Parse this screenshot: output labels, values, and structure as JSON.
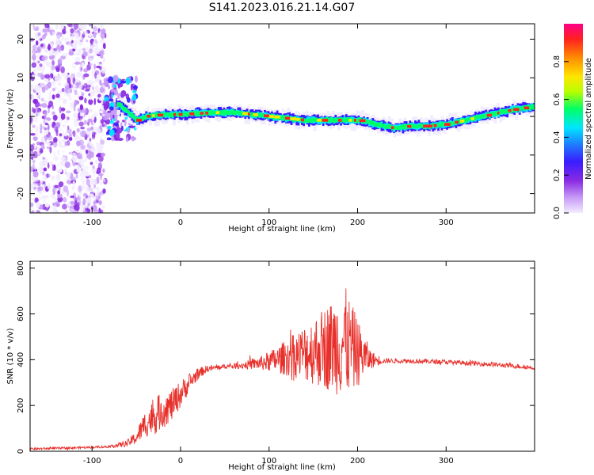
{
  "title": "S141.2023.016.21.14.G07",
  "colors": {
    "snr_line": "#e8302b",
    "axis": "#000000",
    "background": "#ffffff",
    "colormap": [
      "#f2ecff",
      "#c89cf7",
      "#8a2be2",
      "#3a1cff",
      "#1f7bff",
      "#00e5ff",
      "#00ff66",
      "#b6ff00",
      "#ffe600",
      "#ff8c00",
      "#ff2020",
      "#ff0088"
    ]
  },
  "chart_data": [
    {
      "type": "heatmap",
      "xlabel": "Height of straight line (km)",
      "ylabel": "Frequency (Hz)",
      "xlim": [
        -170,
        400
      ],
      "ylim": [
        -25,
        24
      ],
      "x_ticks": [
        -100,
        0,
        100,
        200,
        300
      ],
      "y_ticks": [
        -20,
        -10,
        0,
        10,
        20
      ],
      "ridge": {
        "x": [
          -70,
          -60,
          -50,
          -40,
          -20,
          0,
          20,
          40,
          60,
          80,
          100,
          120,
          140,
          160,
          180,
          200,
          220,
          240,
          260,
          280,
          300,
          320,
          340,
          360,
          380,
          400
        ],
        "freq": [
          3,
          1,
          -1,
          0,
          0.5,
          0.5,
          0.8,
          1,
          1,
          0.5,
          0,
          -0.5,
          -1,
          -1,
          -1,
          -1,
          -2,
          -3,
          -2.5,
          -2.5,
          -2,
          -1,
          0,
          1,
          2,
          2.5
        ]
      },
      "colorbar": {
        "label": "Normalized spectral amplitude",
        "ticks": [
          "0.0",
          "0.2",
          "0.4",
          "0.6",
          "0.8"
        ],
        "range": [
          0,
          1
        ]
      }
    },
    {
      "type": "line",
      "xlabel": "Height of straight line (km)",
      "ylabel": "SNR (10 * v/v)",
      "xlim": [
        -170,
        400
      ],
      "ylim": [
        0,
        830
      ],
      "x_ticks": [
        -100,
        0,
        100,
        200,
        300
      ],
      "y_ticks": [
        0,
        200,
        400,
        600,
        800
      ],
      "series": [
        {
          "x": [
            -170,
            -120,
            -80,
            -60,
            -50,
            -40,
            -30,
            -20,
            -10,
            0,
            10,
            20,
            30,
            50,
            70,
            90,
            110,
            130,
            150,
            170,
            185,
            200,
            215,
            230,
            260,
            300,
            350,
            400
          ],
          "y": [
            10,
            15,
            20,
            35,
            60,
            120,
            150,
            180,
            200,
            250,
            300,
            340,
            360,
            370,
            375,
            385,
            400,
            420,
            440,
            460,
            480,
            430,
            400,
            395,
            395,
            390,
            380,
            365
          ],
          "spread": [
            5,
            5,
            5,
            15,
            30,
            60,
            80,
            80,
            70,
            60,
            40,
            25,
            15,
            10,
            15,
            30,
            60,
            100,
            150,
            200,
            250,
            150,
            40,
            10,
            10,
            10,
            10,
            10
          ]
        }
      ]
    }
  ]
}
